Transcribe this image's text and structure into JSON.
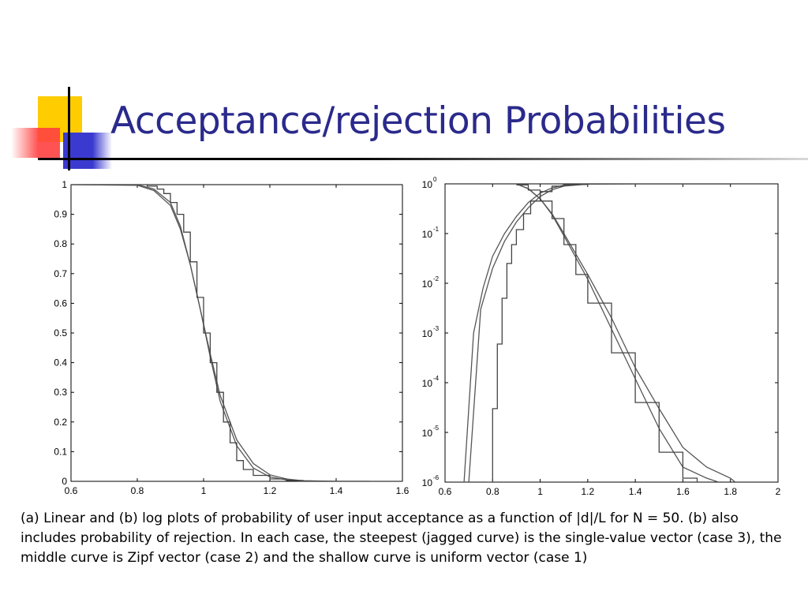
{
  "slide": {
    "title": "Acceptance/rejection Probabilities",
    "caption": "(a) Linear and (b) log plots of probability of user input acceptance as a function of |d|/L for N = 50. (b) also includes probability of rejection. In each case, the steepest (jagged curve) is the single-value vector (case 3), the middle curve is Zipf vector (case 2) and the shallow curve is uniform vector (case 1)",
    "colors": {
      "title": "#2a2a8c",
      "deco_yellow": "#ffcc00",
      "deco_blue": "#3a3ad0",
      "deco_red": "#ff4040"
    }
  },
  "chart_data": [
    {
      "id": "a",
      "type": "line",
      "title": "",
      "xlabel": "",
      "ylabel": "",
      "xlim": [
        0.6,
        1.6
      ],
      "ylim": [
        0,
        1
      ],
      "yscale": "linear",
      "grid": false,
      "x_ticks": [
        "0.6",
        "0.8",
        "1",
        "1.2",
        "1.4",
        "1.6"
      ],
      "y_ticks": [
        "0",
        "0.1",
        "0.2",
        "0.3",
        "0.4",
        "0.5",
        "0.6",
        "0.7",
        "0.8",
        "0.9",
        "1"
      ],
      "series": [
        {
          "x": [
            0.6,
            0.8,
            0.85,
            0.9,
            0.93,
            0.96,
            0.99,
            1.02,
            1.05,
            1.1,
            1.15,
            1.2,
            1.25,
            1.3,
            1.4,
            1.5
          ],
          "y": [
            1.0,
            1.0,
            0.985,
            0.94,
            0.86,
            0.73,
            0.58,
            0.42,
            0.27,
            0.12,
            0.045,
            0.015,
            0.005,
            0.001,
            0.0,
            0.0
          ]
        },
        {
          "x": [
            0.6,
            0.8,
            0.85,
            0.9,
            0.93,
            0.96,
            0.99,
            1.02,
            1.05,
            1.1,
            1.15,
            1.2,
            1.25,
            1.3,
            1.4,
            1.5
          ],
          "y": [
            1.0,
            0.998,
            0.98,
            0.93,
            0.85,
            0.73,
            0.58,
            0.43,
            0.29,
            0.14,
            0.06,
            0.022,
            0.008,
            0.002,
            0.0,
            0.0
          ]
        },
        {
          "x": [
            0.6,
            0.8,
            0.83,
            0.86,
            0.88,
            0.9,
            0.92,
            0.94,
            0.96,
            0.98,
            1.0,
            1.02,
            1.04,
            1.06,
            1.08,
            1.1,
            1.12,
            1.15,
            1.2,
            1.25,
            1.3,
            1.5
          ],
          "y": [
            1.0,
            1.0,
            0.995,
            0.985,
            0.97,
            0.94,
            0.9,
            0.84,
            0.74,
            0.62,
            0.5,
            0.4,
            0.3,
            0.2,
            0.13,
            0.07,
            0.04,
            0.02,
            0.008,
            0.003,
            0.0,
            0.0
          ],
          "step": true
        }
      ]
    },
    {
      "id": "b",
      "type": "line",
      "title": "",
      "xlabel": "",
      "ylabel": "",
      "xlim": [
        0.6,
        2.0
      ],
      "ylim": [
        1e-06,
        1
      ],
      "yscale": "log",
      "grid": false,
      "x_ticks": [
        "0.6",
        "0.8",
        "1",
        "1.2",
        "1.4",
        "1.6",
        "1.8",
        "2"
      ],
      "y_tick_bases": [
        "10",
        "10",
        "10",
        "10",
        "10",
        "10",
        "10"
      ],
      "y_tick_exponents": [
        "0",
        "-1",
        "-2",
        "-3",
        "-4",
        "-5",
        "-6"
      ],
      "series": [
        {
          "x": [
            0.7,
            0.75,
            0.8,
            0.85,
            0.9,
            0.95,
            1.0,
            1.05,
            1.1,
            1.2,
            1.4,
            1.6,
            1.8
          ],
          "y": [
            1e-06,
            0.003,
            0.02,
            0.07,
            0.17,
            0.33,
            0.56,
            0.76,
            0.9,
            0.99,
            1.0,
            1.0,
            1.0
          ]
        },
        {
          "x": [
            0.68,
            0.72,
            0.76,
            0.8,
            0.85,
            0.9,
            0.95,
            1.0,
            1.05,
            1.1,
            1.2,
            1.4,
            1.8
          ],
          "y": [
            1e-06,
            0.001,
            0.008,
            0.035,
            0.1,
            0.22,
            0.42,
            0.65,
            0.83,
            0.94,
            0.995,
            1.0,
            1.0
          ]
        },
        {
          "x": [
            0.78,
            0.8,
            0.82,
            0.84,
            0.86,
            0.88,
            0.9,
            0.93,
            0.96,
            1.0,
            1.05,
            1.1,
            1.2,
            1.3,
            1.5,
            1.8
          ],
          "y": [
            1e-06,
            3e-05,
            0.0006,
            0.005,
            0.025,
            0.06,
            0.12,
            0.25,
            0.45,
            0.7,
            0.9,
            0.97,
            1.0,
            1.0,
            1.0,
            1.0
          ],
          "step": true
        },
        {
          "x": [
            0.9,
            0.95,
            1.0,
            1.05,
            1.1,
            1.2,
            1.3,
            1.4,
            1.5,
            1.6,
            1.7,
            1.8,
            1.82
          ],
          "y": [
            1.0,
            0.8,
            0.5,
            0.25,
            0.1,
            0.015,
            0.002,
            0.0002,
            3e-05,
            5e-06,
            2e-06,
            1.2e-06,
            1e-06
          ]
        },
        {
          "x": [
            0.9,
            0.95,
            1.0,
            1.05,
            1.1,
            1.2,
            1.3,
            1.4,
            1.5,
            1.6,
            1.7,
            1.75
          ],
          "y": [
            1.0,
            0.8,
            0.5,
            0.24,
            0.09,
            0.012,
            0.0012,
            0.00012,
            1.2e-05,
            2e-06,
            1.2e-06,
            1e-06
          ]
        },
        {
          "x": [
            0.9,
            0.95,
            1.0,
            1.05,
            1.1,
            1.15,
            1.2,
            1.3,
            1.4,
            1.5,
            1.6,
            1.66
          ],
          "y": [
            0.95,
            0.75,
            0.45,
            0.2,
            0.06,
            0.015,
            0.004,
            0.0004,
            4e-05,
            4e-06,
            1.2e-06,
            1e-06
          ],
          "step": true
        }
      ]
    }
  ]
}
